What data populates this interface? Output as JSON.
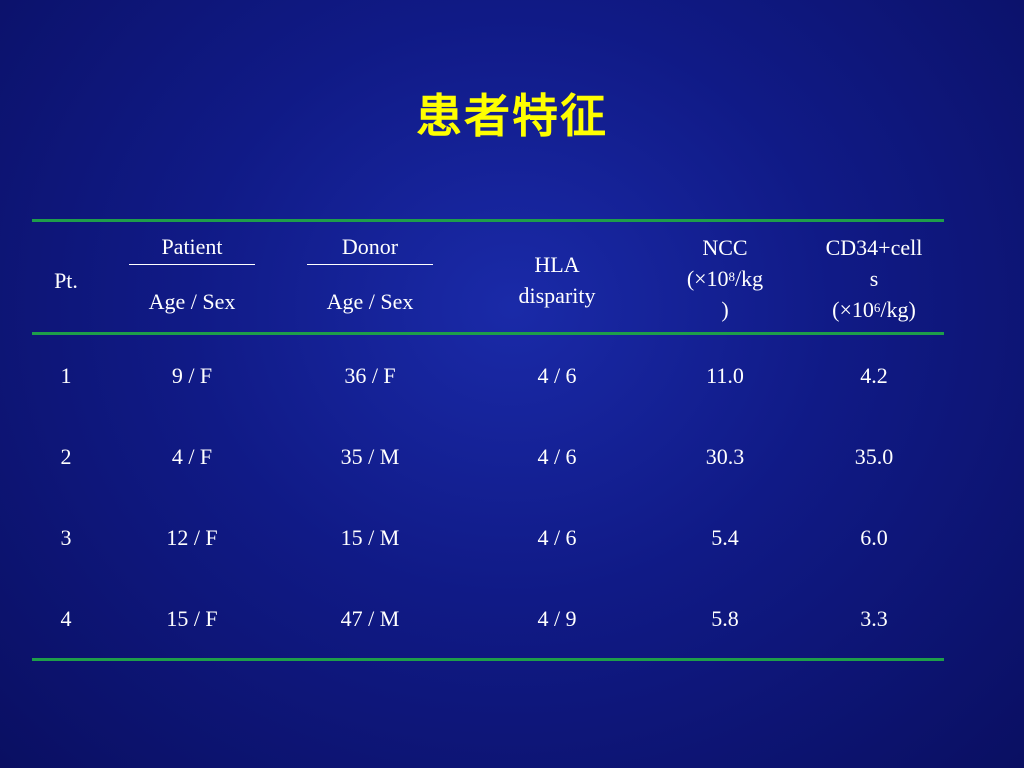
{
  "slide": {
    "title": "患者特征",
    "colors": {
      "title": "#ffff00",
      "rule": "#1e9e4a",
      "background": "#101a86"
    }
  },
  "table": {
    "headers": {
      "pt": "Pt.",
      "patient": "Patient",
      "patient_sub": "Age / Sex",
      "donor": "Donor",
      "donor_sub": "Age / Sex",
      "hla_line1": "HLA",
      "hla_line2": "disparity",
      "ncc_line1": "NCC",
      "ncc_line2_pre": "(×10",
      "ncc_line2_sup": "8",
      "ncc_line2_post": "/kg",
      "ncc_line3": ")",
      "cd34_line1": "CD34+cell",
      "cd34_line2": "s",
      "cd34_line3_pre": "(×10",
      "cd34_line3_sup": "6",
      "cd34_line3_post": "/kg)"
    },
    "rows": [
      {
        "pt": "1",
        "patient": "9 / F",
        "donor": "36 / F",
        "hla": "4 / 6",
        "ncc": "11.0",
        "cd34": "4.2"
      },
      {
        "pt": "2",
        "patient": "4 / F",
        "donor": "35 / M",
        "hla": "4 / 6",
        "ncc": "30.3",
        "cd34": "35.0"
      },
      {
        "pt": "3",
        "patient": "12 / F",
        "donor": "15 / M",
        "hla": "4 / 6",
        "ncc": "5.4",
        "cd34": "6.0"
      },
      {
        "pt": "4",
        "patient": "15 / F",
        "donor": "47 / M",
        "hla": "4 / 9",
        "ncc": "5.8",
        "cd34": "3.3"
      }
    ]
  }
}
